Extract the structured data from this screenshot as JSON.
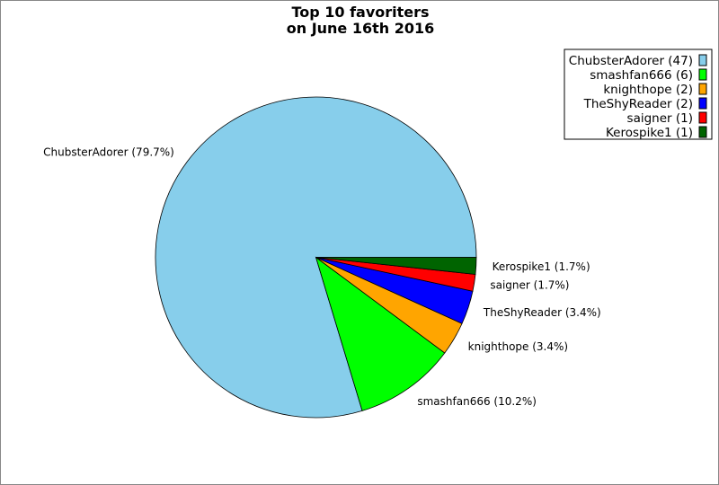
{
  "chart_data": {
    "type": "pie",
    "title": [
      "Top 10 favoriters",
      "on June 16th 2016"
    ],
    "start_angle_deg": 0,
    "direction": "counterclockwise",
    "legend_position": "top-right",
    "slices": [
      {
        "name": "ChubsterAdorer",
        "value": 47,
        "percent": "79.7%",
        "color": "#87ceeb",
        "legend": "ChubsterAdorer (47)",
        "label": "ChubsterAdorer (79.7%)"
      },
      {
        "name": "smashfan666",
        "value": 6,
        "percent": "10.2%",
        "color": "#00ff00",
        "legend": "smashfan666 (6)",
        "label": "smashfan666 (10.2%)"
      },
      {
        "name": "knighthope",
        "value": 2,
        "percent": "3.4%",
        "color": "#ffa500",
        "legend": "knighthope (2)",
        "label": "knighthope (3.4%)"
      },
      {
        "name": "TheShyReader",
        "value": 2,
        "percent": "3.4%",
        "color": "#0000ff",
        "legend": "TheShyReader (2)",
        "label": "TheShyReader (3.4%)"
      },
      {
        "name": "saigner",
        "value": 1,
        "percent": "1.7%",
        "color": "#ff0000",
        "legend": "saigner (1)",
        "label": "saigner (1.7%)"
      },
      {
        "name": "Kerospike1",
        "value": 1,
        "percent": "1.7%",
        "color": "#006400",
        "legend": "Kerospike1 (1)",
        "label": "Kerospike1 (1.7%)"
      }
    ]
  }
}
